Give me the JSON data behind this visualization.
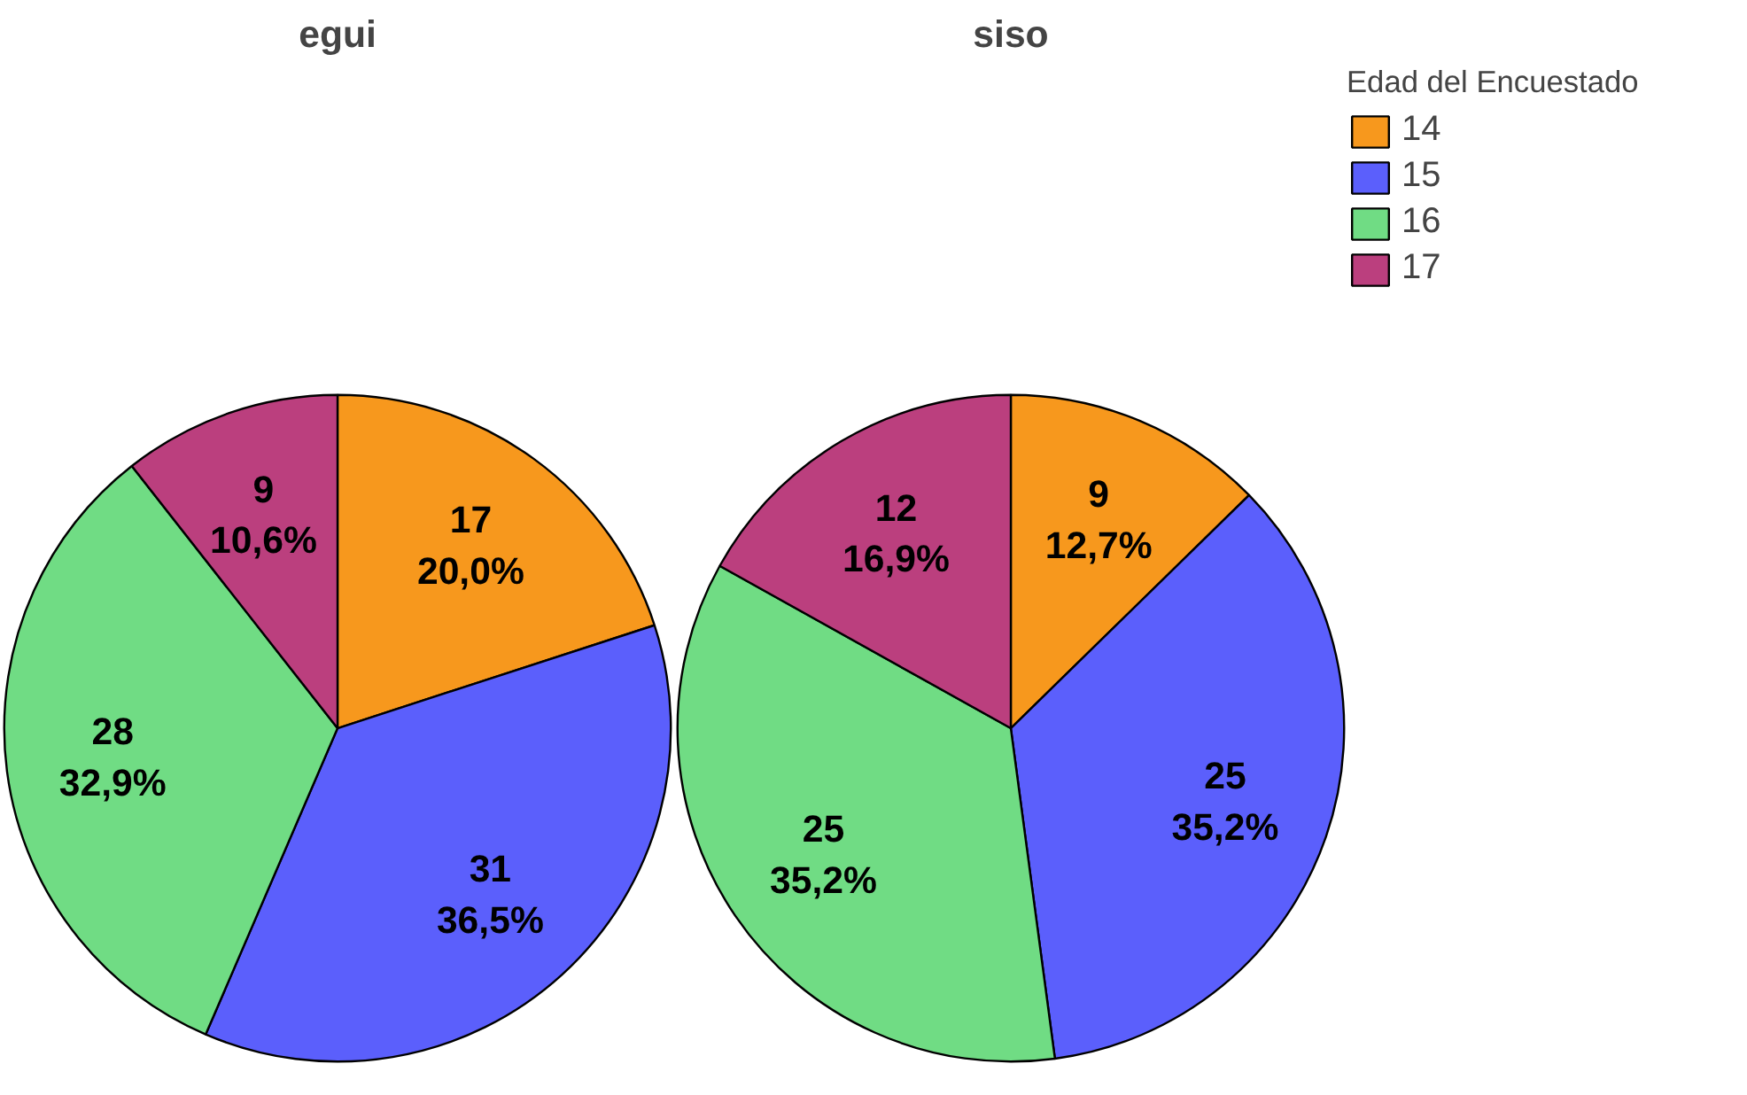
{
  "chart_data": [
    {
      "type": "pie",
      "title": "egui",
      "categories": [
        "14",
        "15",
        "16",
        "17"
      ],
      "values": [
        17,
        31,
        28,
        9
      ],
      "colors": [
        "#f7981d",
        "#5b5ffc",
        "#70dc84",
        "#bb3f7e"
      ],
      "value_labels": [
        "17\n20,0%",
        "31\n36,5%",
        "28\n32,9%",
        "9\n10,6%"
      ],
      "legend": "right",
      "legend_title": "Edad del Encuestado"
    },
    {
      "type": "pie",
      "title": "siso",
      "values": [
        9,
        25,
        25,
        12
      ],
      "colors": [
        "#f7981d",
        "#5b5ffc",
        "#70dc84",
        "#bb3f7e"
      ],
      "value_labels": [
        "9\n12,7%",
        "25\n35,2%",
        "25\n35,2%",
        "12\n16,9%"
      ]
    }
  ]
}
